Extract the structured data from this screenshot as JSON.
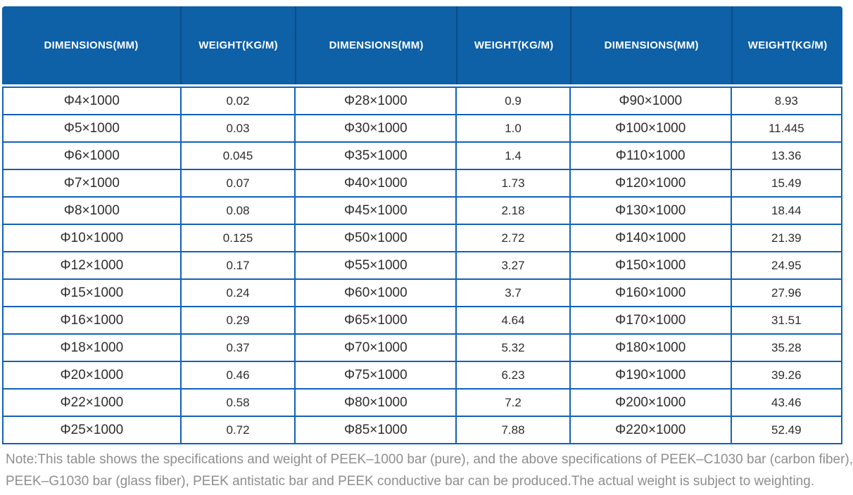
{
  "table": {
    "header_labels": [
      "DIMENSIONS(MM)",
      "WEIGHT(KG/M)",
      "DIMENSIONS(MM)",
      "WEIGHT(KG/M)",
      "DIMENSIONS(MM)",
      "WEIGHT(KG/M)"
    ],
    "rows": [
      [
        "Φ4×1000",
        "0.02",
        "Φ28×1000",
        "0.9",
        "Φ90×1000",
        "8.93"
      ],
      [
        "Φ5×1000",
        "0.03",
        "Φ30×1000",
        "1.0",
        "Φ100×1000",
        "11.445"
      ],
      [
        "Φ6×1000",
        "0.045",
        "Φ35×1000",
        "1.4",
        "Φ110×1000",
        "13.36"
      ],
      [
        "Φ7×1000",
        "0.07",
        "Φ40×1000",
        "1.73",
        "Φ120×1000",
        "15.49"
      ],
      [
        "Φ8×1000",
        "0.08",
        "Φ45×1000",
        "2.18",
        "Φ130×1000",
        "18.44"
      ],
      [
        "Φ10×1000",
        "0.125",
        "Φ50×1000",
        "2.72",
        "Φ140×1000",
        "21.39"
      ],
      [
        "Φ12×1000",
        "0.17",
        "Φ55×1000",
        "3.27",
        "Φ150×1000",
        "24.95"
      ],
      [
        "Φ15×1000",
        "0.24",
        "Φ60×1000",
        "3.7",
        "Φ160×1000",
        "27.96"
      ],
      [
        "Φ16×1000",
        "0.29",
        "Φ65×1000",
        "4.64",
        "Φ170×1000",
        "31.51"
      ],
      [
        "Φ18×1000",
        "0.37",
        "Φ70×1000",
        "5.32",
        "Φ180×1000",
        "35.28"
      ],
      [
        "Φ20×1000",
        "0.46",
        "Φ75×1000",
        "6.23",
        "Φ190×1000",
        "39.26"
      ],
      [
        "Φ22×1000",
        "0.58",
        "Φ80×1000",
        "7.2",
        "Φ200×1000",
        "43.46"
      ],
      [
        "Φ25×1000",
        "0.72",
        "Φ85×1000",
        "7.88",
        "Φ220×1000",
        "52.49"
      ]
    ]
  },
  "note": {
    "lines": [
      "Note:This table shows the specifications and weight of PEEK–1000 bar (pure), and the above specifications of PEEK–C1030 bar (carbon fiber),",
      "PEEK–G1030 bar (glass fiber), PEEK antistatic bar and PEEK conductive bar can be produced.The actual weight is subject to weighting."
    ]
  },
  "colors": {
    "header_blue": "#0e60a7",
    "header_separator_blue": "#0a4c86",
    "border_blue": "#1261b7",
    "cell_text": "#2d2d2d",
    "note_gray": "#8e8e8e"
  }
}
